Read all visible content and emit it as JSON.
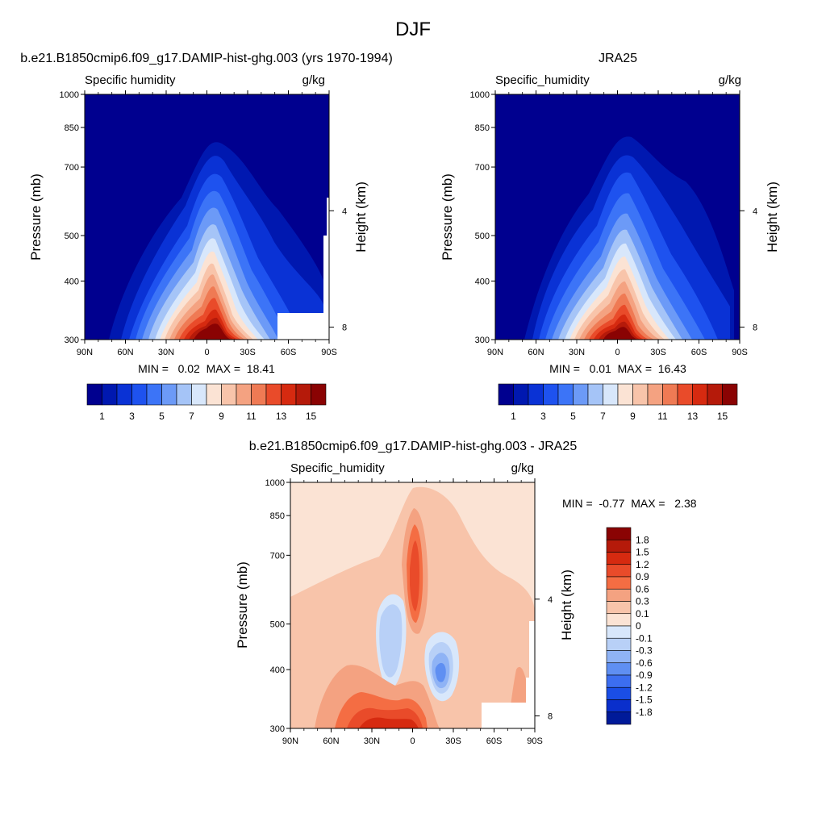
{
  "figure_title": "DJF",
  "chart_data": [
    {
      "id": "model",
      "type": "heatmap",
      "title": "b.e21.B1850cmip6.f09_g17.DAMIP-hist-ghg.003 (yrs 1970-1994)",
      "variable_label": "Specific humidity",
      "units": "g/kg",
      "ylabel": "Pressure (mb)",
      "ylabel_right": "Height (km)",
      "x_ticks": [
        "90N",
        "60N",
        "30N",
        "0",
        "30S",
        "60S",
        "90S"
      ],
      "y_ticks": [
        "300",
        "400",
        "500",
        "700",
        "850",
        "1000"
      ],
      "y_right_ticks": [
        "8",
        "4"
      ],
      "xlim": [
        90,
        -90
      ],
      "ylim": [
        1000,
        300
      ],
      "y_scale": "log",
      "stats_text": "MIN =   0.02  MAX =  18.41",
      "min": 0.02,
      "max": 18.41,
      "colorbar_orientation": "horizontal",
      "colorbar_labels": [
        "1",
        "3",
        "5",
        "7",
        "9",
        "11",
        "13",
        "15"
      ],
      "levels": [
        1,
        2,
        3,
        4,
        5,
        6,
        7,
        8,
        9,
        10,
        11,
        12,
        13,
        14,
        15,
        16
      ],
      "colors": [
        "#00008f",
        "#0018b0",
        "#0a32d5",
        "#1e52ef",
        "#3c74f7",
        "#6c9af7",
        "#a5c4f7",
        "#d8e7fb",
        "#fbe3d4",
        "#f8c4aa",
        "#f4a281",
        "#ef7a54",
        "#e94b2a",
        "#d62a10",
        "#b51a0a",
        "#8a0303"
      ]
    },
    {
      "id": "obs",
      "type": "heatmap",
      "title": "JRA25",
      "variable_label": "Specific_humidity",
      "units": "g/kg",
      "ylabel": "Pressure (mb)",
      "ylabel_right": "Height (km)",
      "x_ticks": [
        "90N",
        "60N",
        "30N",
        "0",
        "30S",
        "60S",
        "90S"
      ],
      "y_ticks": [
        "300",
        "400",
        "500",
        "700",
        "850",
        "1000"
      ],
      "y_right_ticks": [
        "8",
        "4"
      ],
      "xlim": [
        90,
        -90
      ],
      "ylim": [
        1000,
        300
      ],
      "y_scale": "log",
      "stats_text": "MIN =   0.01  MAX =  16.43",
      "min": 0.01,
      "max": 16.43,
      "colorbar_orientation": "horizontal",
      "colorbar_labels": [
        "1",
        "3",
        "5",
        "7",
        "9",
        "11",
        "13",
        "15"
      ]
    },
    {
      "id": "diff",
      "type": "heatmap",
      "title": "b.e21.B1850cmip6.f09_g17.DAMIP-hist-ghg.003 - JRA25",
      "variable_label": "Specific_humidity",
      "units": "g/kg",
      "ylabel": "Pressure (mb)",
      "ylabel_right": "Height (km)",
      "x_ticks": [
        "90N",
        "60N",
        "30N",
        "0",
        "30S",
        "60S",
        "90S"
      ],
      "y_ticks": [
        "300",
        "400",
        "500",
        "700",
        "850",
        "1000"
      ],
      "y_right_ticks": [
        "8",
        "4"
      ],
      "xlim": [
        90,
        -90
      ],
      "ylim": [
        1000,
        300
      ],
      "y_scale": "log",
      "stats_text": "MIN =  -0.77  MAX =   2.38",
      "min": -0.77,
      "max": 2.38,
      "colorbar_orientation": "vertical",
      "colorbar_labels": [
        "1.8",
        "1.5",
        "1.2",
        "0.9",
        "0.6",
        "0.3",
        "0.1",
        "0",
        "-0.1",
        "-0.3",
        "-0.6",
        "-0.9",
        "-1.2",
        "-1.5",
        "-1.8"
      ],
      "colors_top_to_bottom": [
        "#8a0303",
        "#b51a0a",
        "#d62a10",
        "#e94b2a",
        "#f46d43",
        "#f4a281",
        "#f8c4aa",
        "#fbe3d4",
        "#d8e7fb",
        "#b8d0f7",
        "#8fb3f5",
        "#5f8ff2",
        "#3c6ef0",
        "#1a4ee6",
        "#0a2fcc",
        "#001a99"
      ]
    }
  ]
}
